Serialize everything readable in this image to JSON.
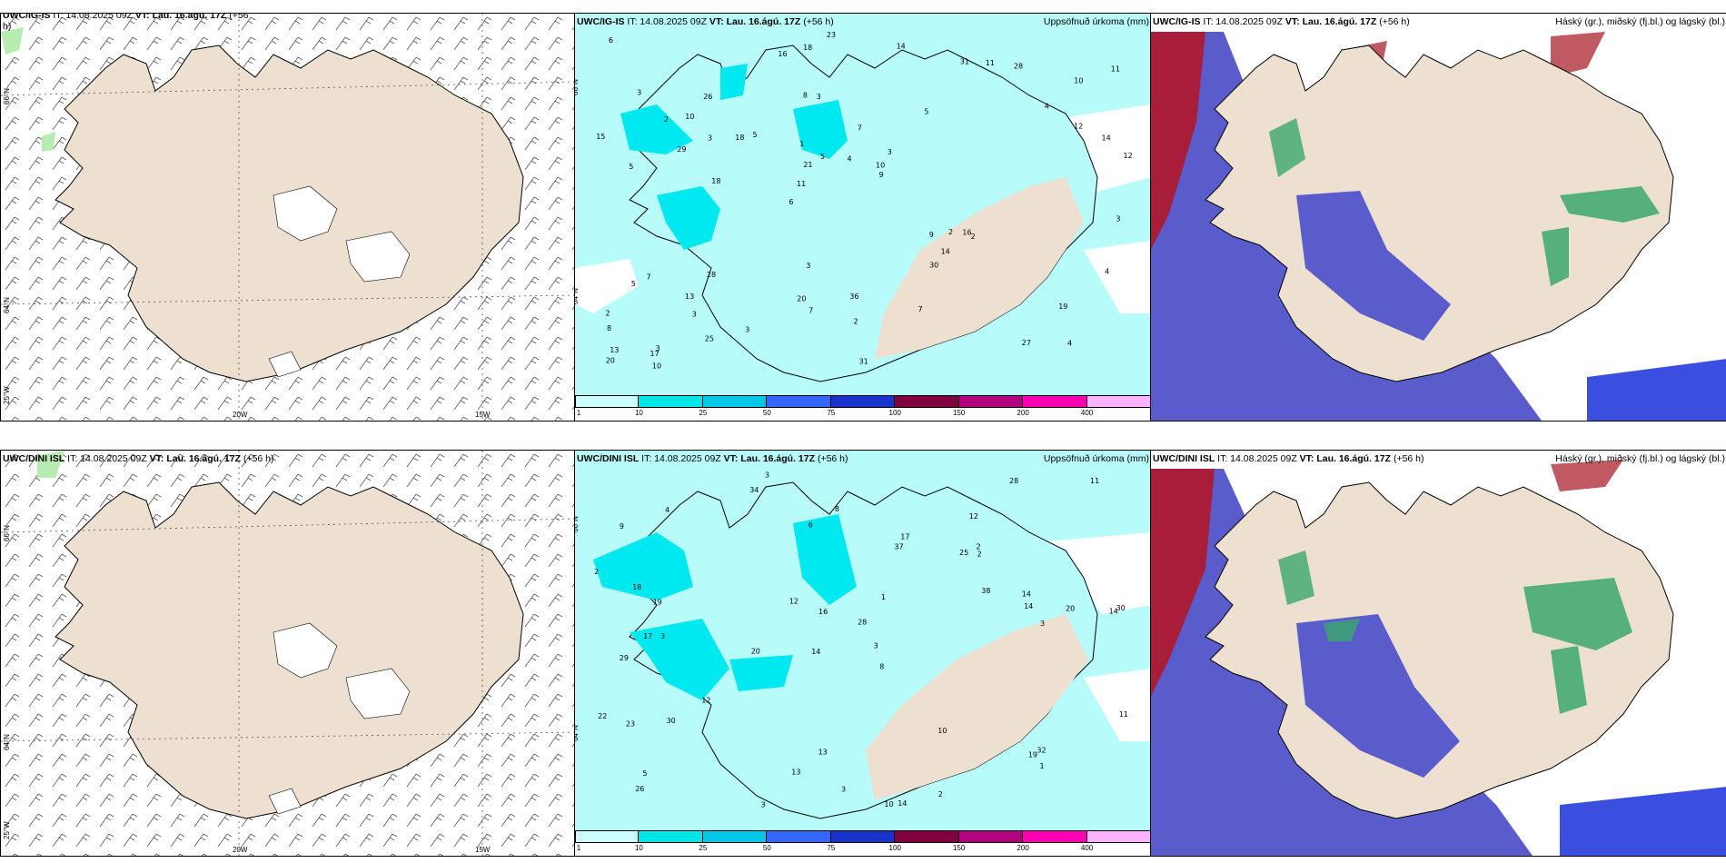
{
  "panels": {
    "p1": {
      "model": "UWC/IG-IS",
      "it": " IT: 14.08.2025 09Z ",
      "vt": "VT: Lau. 16.ágú. 17Z",
      "lead": " (+56",
      "lead2": "h)"
    },
    "p2": {
      "model": "UWC/IG-IS",
      "it": " IT: 14.08.2025 09Z ",
      "vt": "VT: Lau. 16.ágú. 17Z",
      "lead": " (+56 h)",
      "right": "Uppsöfnuð úrkoma (mm)"
    },
    "p3": {
      "model": "UWC/IG-IS",
      "it": " IT: 14.08.2025 09Z ",
      "vt": "VT: Lau. 16.ágú. 17Z",
      "lead": " (+56 h)",
      "right": "Háský (gr.), miðský (fj.bl.) og lágský (bl.)"
    },
    "p4": {
      "model": "UWC/DINI ISL",
      "it": " IT: 14.08.2025 09Z ",
      "vt": "VT: Lau. 16.ágú. 17Z",
      "lead": " (+56 h)"
    },
    "p5": {
      "model": "UWC/DINI ISL",
      "it": " IT: 14.08.2025 09Z ",
      "vt": "VT: Lau. 16.ágú. 17Z",
      "lead": " (+56 h)",
      "right": "Uppsöfnuð úrkoma (mm)"
    },
    "p6": {
      "model": "UWC/DINI ISL",
      "it": " IT: 14.08.2025 09Z ",
      "vt": "VT: Lau. 16.ágú. 17Z",
      "lead": " (+56 h)",
      "right": "Háský (gr.), miðský (fj.bl.) og lágský (bl.)"
    }
  },
  "axes": {
    "lat66": "66°N",
    "lat64": "64°N",
    "lon25": "25°W",
    "lon20": "20W",
    "lon15": "15W"
  },
  "legend": {
    "labels": [
      "1",
      "10",
      "25",
      "50",
      "75",
      "100",
      "150",
      "200",
      "400"
    ],
    "colors": [
      "#ccffff",
      "#00e5e5",
      "#00c8e6",
      "#3366ff",
      "#1a33cc",
      "#800040",
      "#b30080",
      "#ff00b3",
      "#ffb3ff"
    ]
  },
  "colors": {
    "land": "#ede0d0",
    "precip_light": "#b8fbfb",
    "precip_mid": "#00e8f0",
    "low_cloud": "#5a5ccc",
    "mid_cloud": "#3a4fe0",
    "high_cloud": "#b02030",
    "green_cloud": "#3aa86a"
  },
  "precip_top": [
    "4",
    "5",
    "10",
    "6",
    "5",
    "3",
    "8",
    "7",
    "7",
    "5",
    "8",
    "3",
    "3",
    "3",
    "2",
    "3",
    "18",
    "12",
    "9",
    "12",
    "11",
    "20",
    "21",
    "26",
    "31",
    "28",
    "27",
    "19",
    "16",
    "31",
    "18",
    "29",
    "30",
    "25",
    "14",
    "10",
    "13",
    "7",
    "9",
    "5",
    "4",
    "11",
    "14",
    "7",
    "13",
    "10",
    "20",
    "36",
    "28",
    "23",
    "18",
    "15",
    "10",
    "11",
    "17",
    "14",
    "16",
    "5",
    "4",
    "3",
    "3",
    "2",
    "3",
    "2",
    "6",
    "2",
    "3",
    "1",
    "2",
    "4"
  ],
  "precip_bottom": [
    "3",
    "12",
    "14",
    "14",
    "8",
    "3",
    "9",
    "25",
    "29",
    "37",
    "28",
    "26",
    "34",
    "20",
    "10",
    "14",
    "13",
    "28",
    "38",
    "12",
    "19",
    "17",
    "30",
    "20",
    "22",
    "18",
    "16",
    "14",
    "32",
    "23",
    "19",
    "17",
    "30",
    "12",
    "10",
    "11",
    "14",
    "13",
    "11",
    "8",
    "5",
    "3",
    "2",
    "4",
    "3",
    "2",
    "1",
    "2",
    "2",
    "3",
    "6",
    "3",
    "1"
  ]
}
